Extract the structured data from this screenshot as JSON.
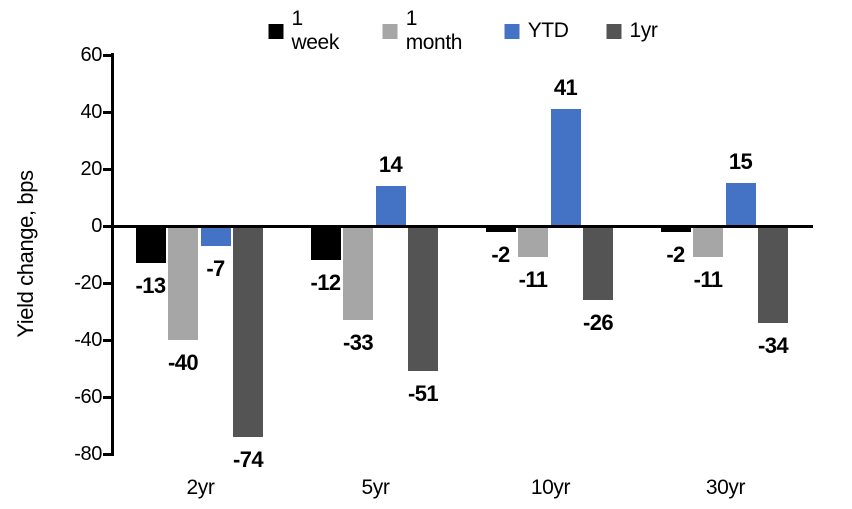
{
  "chart_data": {
    "type": "bar",
    "title": "",
    "ylabel": "Yield change, bps",
    "xlabel": "",
    "categories": [
      "2yr",
      "5yr",
      "10yr",
      "30yr"
    ],
    "series": [
      {
        "name": "1 week",
        "color": "#000000",
        "values": [
          -13,
          -12,
          -2,
          -2
        ]
      },
      {
        "name": "1 month",
        "color": "#A6A6A6",
        "values": [
          -40,
          -33,
          -11,
          -11
        ]
      },
      {
        "name": "YTD",
        "color": "#4472C4",
        "values": [
          -7,
          14,
          41,
          15
        ]
      },
      {
        "name": "1yr",
        "color": "#545454",
        "values": [
          -74,
          -51,
          -26,
          -34
        ]
      }
    ],
    "ylim": [
      -80,
      60
    ],
    "yticks": [
      60,
      40,
      20,
      0,
      -20,
      -40,
      -60,
      -80
    ],
    "grid": false,
    "legend_position": "top",
    "data_labels": true,
    "background": "#FFFFFF",
    "axis_color": "#000000"
  }
}
